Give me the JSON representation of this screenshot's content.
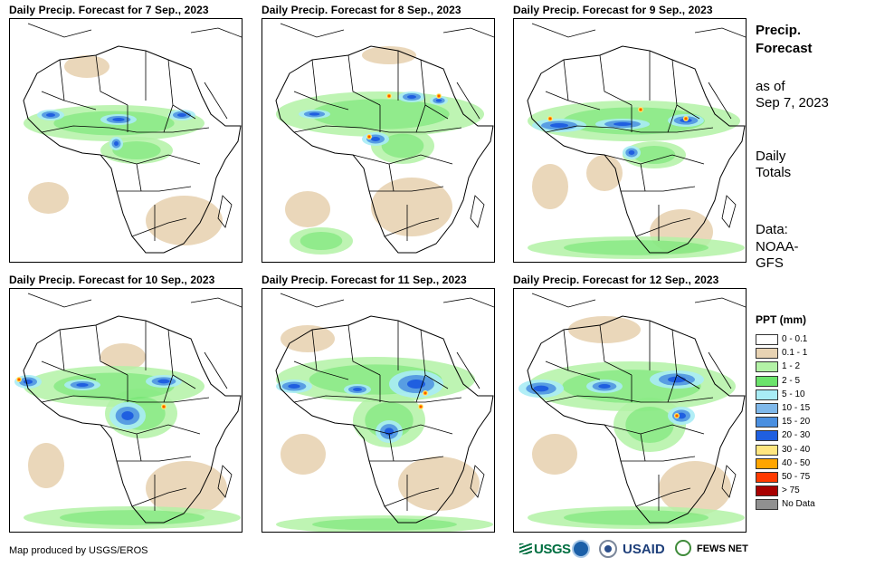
{
  "panels": [
    {
      "title": "Daily Precip. Forecast for 7 Sep., 2023"
    },
    {
      "title": "Daily Precip. Forecast for 8 Sep., 2023"
    },
    {
      "title": "Daily Precip. Forecast for 9 Sep., 2023"
    },
    {
      "title": "Daily Precip. Forecast for 10 Sep., 2023"
    },
    {
      "title": "Daily Precip. Forecast for 11 Sep., 2023"
    },
    {
      "title": "Daily Precip. Forecast for 12 Sep., 2023"
    }
  ],
  "side_info": {
    "heading": "Precip. Forecast",
    "as_of_label": "as of",
    "as_of_date": "Sep 7, 2023",
    "totals_line1": "Daily",
    "totals_line2": "Totals",
    "data_line1": "Data:",
    "data_line2": "NOAA-",
    "data_line3": "GFS"
  },
  "legend": {
    "title": "PPT (mm)",
    "items": [
      {
        "label": "0 - 0.1",
        "color": "#ffffff"
      },
      {
        "label": "0.1 - 1",
        "color": "#e8d3b3"
      },
      {
        "label": "1 - 2",
        "color": "#b3f2a6"
      },
      {
        "label": "2 - 5",
        "color": "#6be36b"
      },
      {
        "label": "5 - 10",
        "color": "#a8ecf5"
      },
      {
        "label": "10 - 15",
        "color": "#7fb8ea"
      },
      {
        "label": "15 - 20",
        "color": "#4a8fe0"
      },
      {
        "label": "20 - 30",
        "color": "#1f5fe0"
      },
      {
        "label": "30 - 40",
        "color": "#ffe680"
      },
      {
        "label": "40 - 50",
        "color": "#ffa500"
      },
      {
        "label": "50 - 75",
        "color": "#ff3a00"
      },
      {
        "label": "> 75",
        "color": "#a80000"
      },
      {
        "label": "No Data",
        "color": "#909090"
      }
    ]
  },
  "footer": {
    "credit": "Map produced by USGS/EROS"
  },
  "logos": {
    "usgs": "USGS",
    "usaid": "USAID",
    "fews": "FEWS NET"
  }
}
